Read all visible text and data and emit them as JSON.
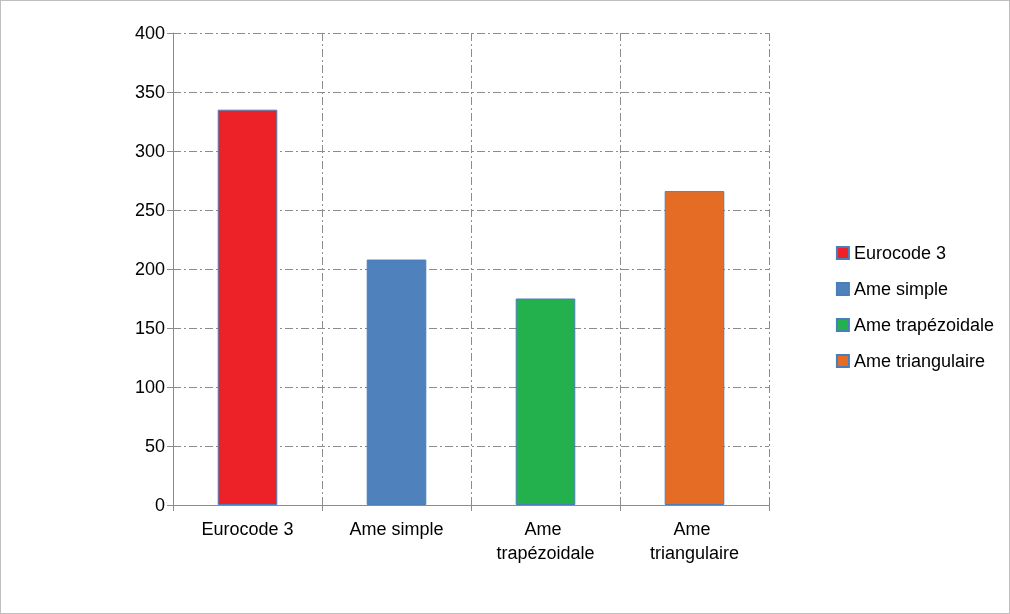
{
  "chart_data": {
    "type": "bar",
    "categories": [
      "Eurocode 3",
      "Ame simple",
      "Ame trapézoidale",
      "Ame triangulaire"
    ],
    "series": [
      {
        "name": "Eurocode 3",
        "color": "#ed2128",
        "values": [
          335,
          null,
          null,
          null
        ]
      },
      {
        "name": "Ame simple",
        "color": "#4f81bd",
        "values": [
          null,
          208,
          null,
          null
        ]
      },
      {
        "name": "Ame trapézoidale",
        "color": "#22b14c",
        "values": [
          null,
          null,
          175,
          null
        ]
      },
      {
        "name": "Ame triangulaire",
        "color": "#e46c24",
        "values": [
          null,
          null,
          null,
          266
        ]
      }
    ],
    "ylim": [
      0,
      400
    ],
    "yticks": [
      0,
      50,
      100,
      150,
      200,
      250,
      300,
      350,
      400
    ],
    "grid": true,
    "legend": "right"
  }
}
